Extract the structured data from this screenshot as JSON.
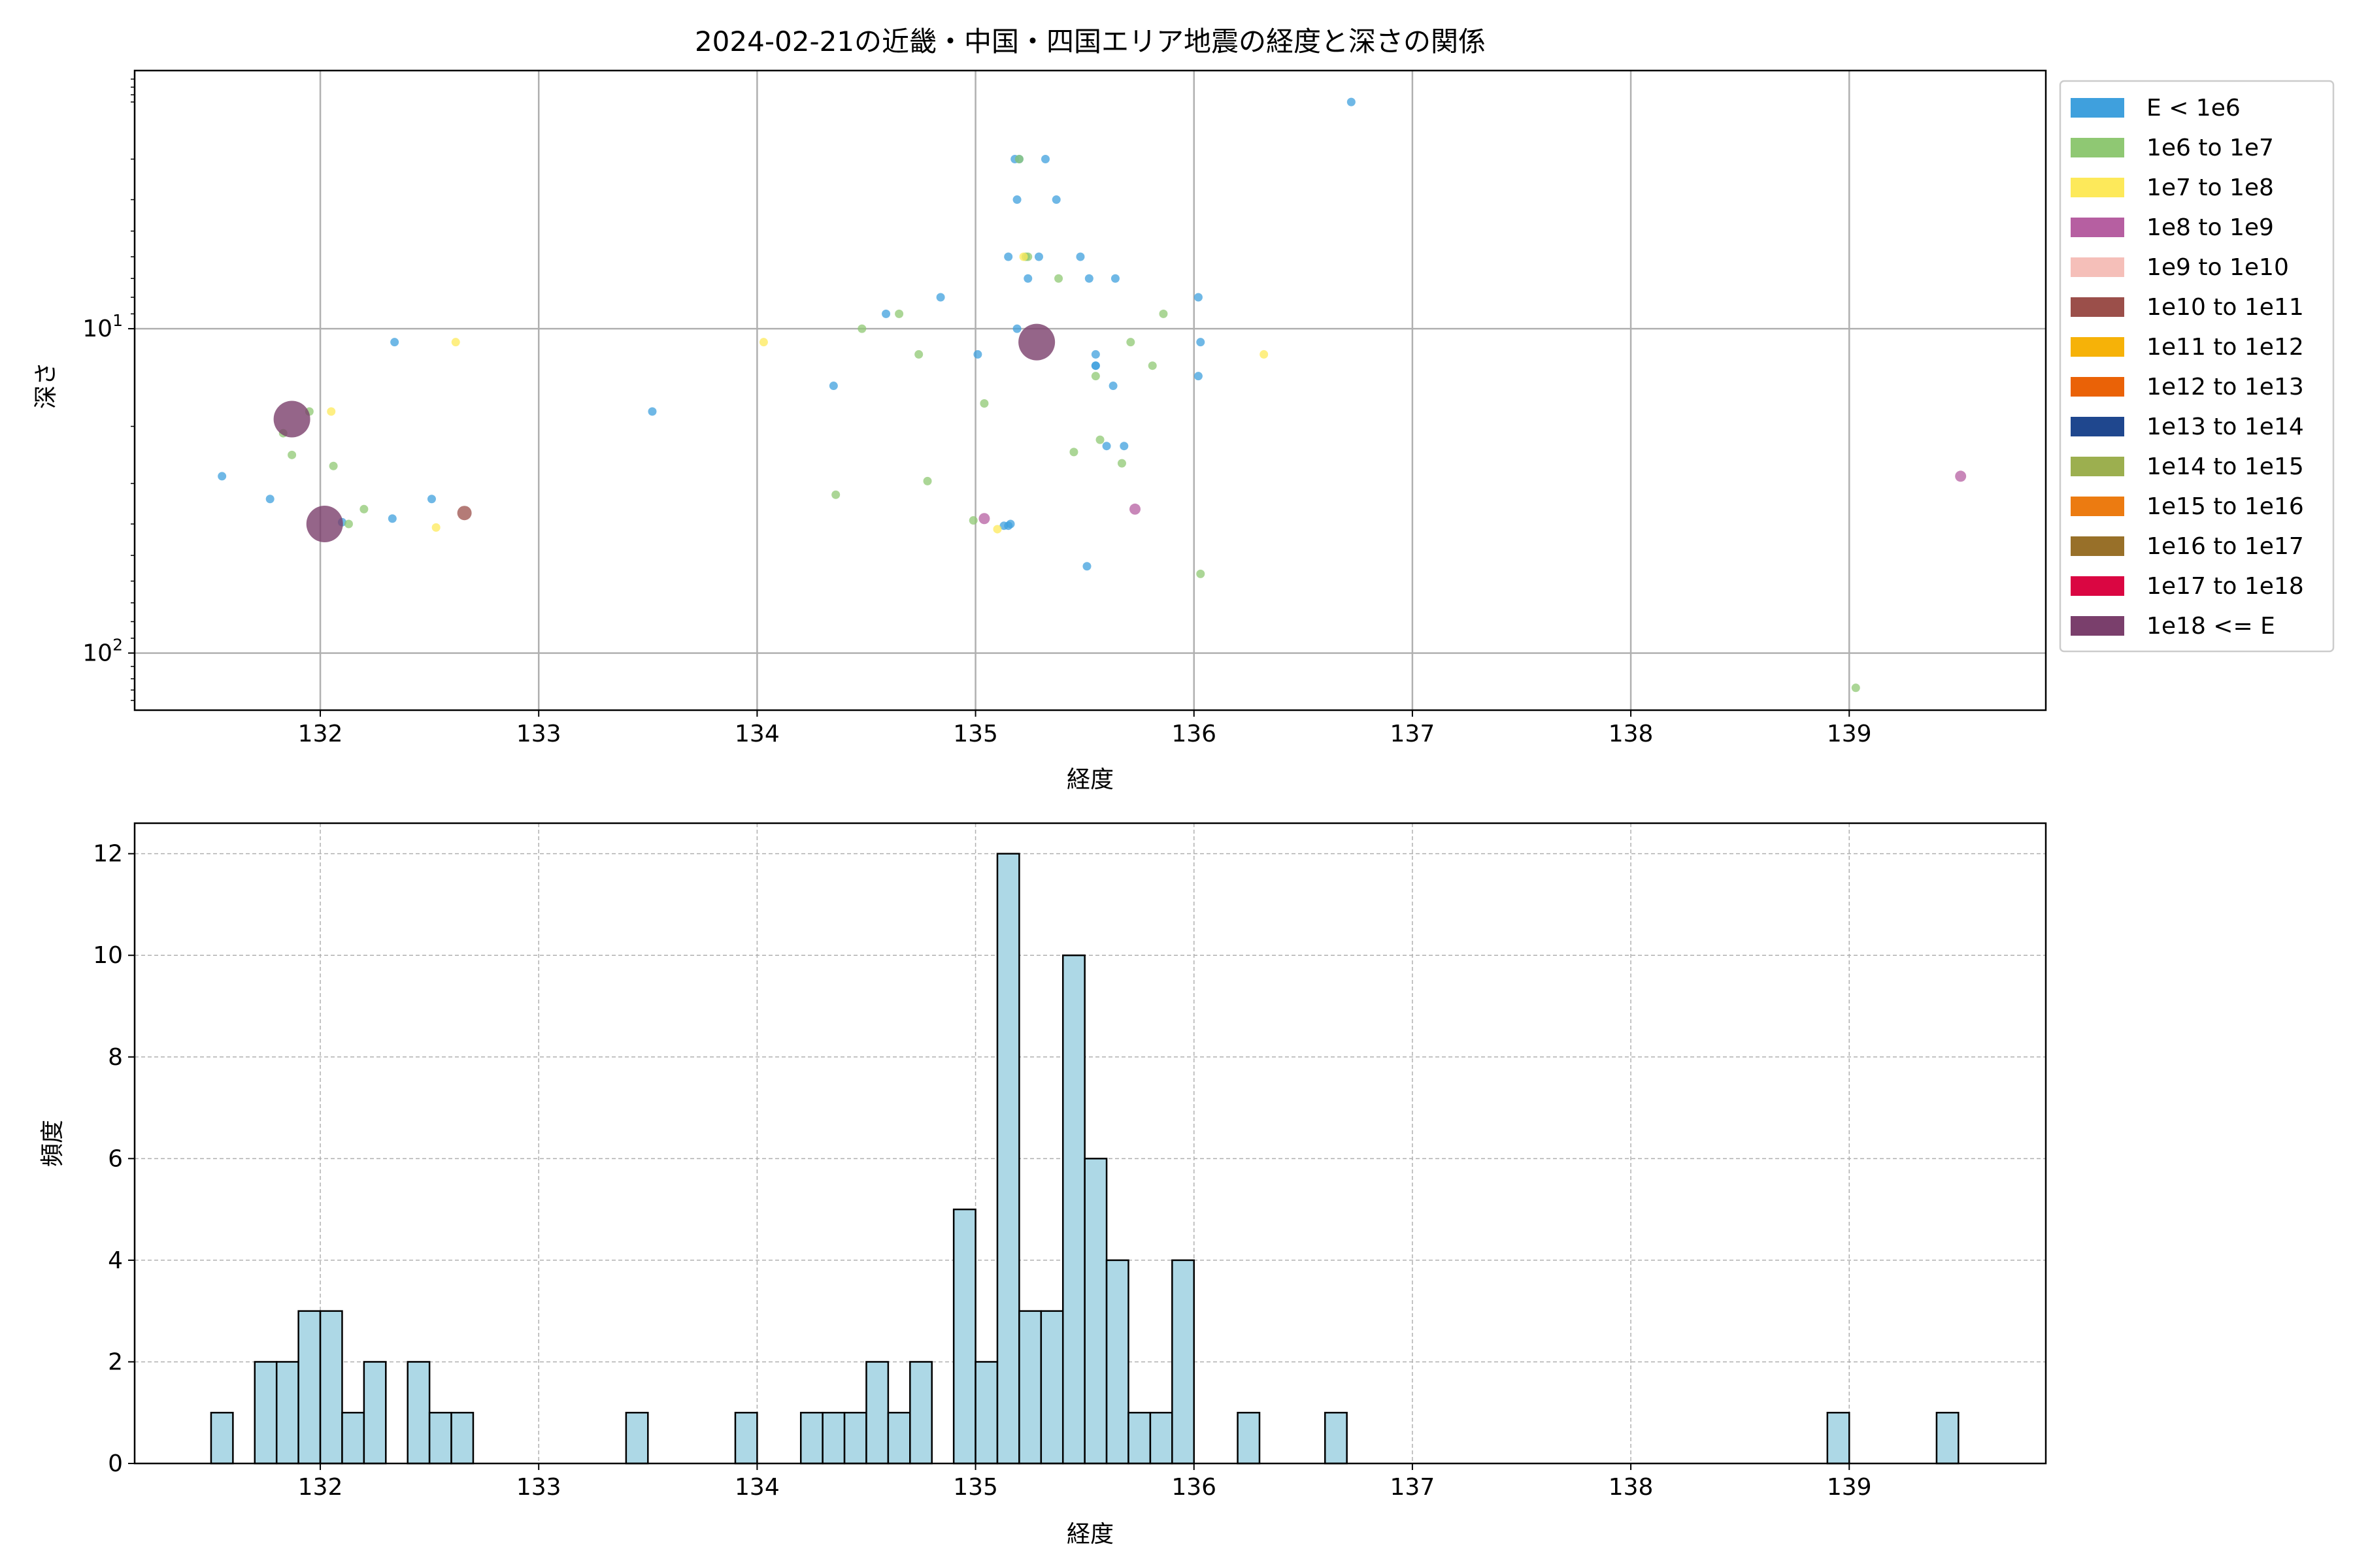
{
  "chart_data": [
    {
      "type": "scatter",
      "title": "2024-02-21の近畿・中国・四国エリア地震の経度と深さの関係",
      "xlabel": "経度",
      "ylabel": "深さ",
      "xlim": [
        131.15,
        139.9
      ],
      "ylim": [
        150,
        1.6
      ],
      "y_scale": "log",
      "y_inverted": true,
      "grid": true,
      "x_ticks": [
        "132",
        "133",
        "134",
        "135",
        "136",
        "137",
        "138",
        "139"
      ],
      "y_ticks": [
        {
          "label": "10",
          "exp": "1",
          "value": 10
        },
        {
          "label": "10",
          "exp": "2",
          "value": 100
        }
      ],
      "legend_position": "outside-right",
      "legend": [
        {
          "label": "E < 1e6",
          "color": "#3fa0dd"
        },
        {
          "label": "1e6 to 1e7",
          "color": "#8fc873"
        },
        {
          "label": "1e7 to 1e8",
          "color": "#fde95a"
        },
        {
          "label": "1e8 to 1e9",
          "color": "#b65fa1"
        },
        {
          "label": "1e9 to 1e10",
          "color": "#f5bfb9"
        },
        {
          "label": "1e10 to 1e11",
          "color": "#9b4f4a"
        },
        {
          "label": "1e11 to 1e12",
          "color": "#f6b208"
        },
        {
          "label": "1e12 to 1e13",
          "color": "#ea6207"
        },
        {
          "label": "1e13 to 1e14",
          "color": "#1f478e"
        },
        {
          "label": "1e14 to 1e15",
          "color": "#9caf4f"
        },
        {
          "label": "1e15 to 1e16",
          "color": "#ec7b11"
        },
        {
          "label": "1e16 to 1e17",
          "color": "#987029"
        },
        {
          "label": "1e17 to 1e18",
          "color": "#da0642"
        },
        {
          "label": "1e18 <= E",
          "color": "#7a3f6c"
        }
      ],
      "series": [
        {
          "name": "E < 1e6",
          "points": [
            [
              131.55,
              28.5
            ],
            [
              131.77,
              33.5
            ],
            [
              132.1,
              39.5
            ],
            [
              132.34,
              11
            ],
            [
              132.33,
              38.5
            ],
            [
              132.51,
              33.5
            ],
            [
              133.52,
              18
            ],
            [
              134.35,
              15
            ],
            [
              134.59,
              9
            ],
            [
              134.84,
              8
            ],
            [
              135.01,
              12
            ],
            [
              135.18,
              3
            ],
            [
              135.2,
              3
            ],
            [
              135.19,
              4
            ],
            [
              135.32,
              3
            ],
            [
              135.37,
              4
            ],
            [
              135.15,
              6
            ],
            [
              135.24,
              7
            ],
            [
              135.29,
              6
            ],
            [
              135.48,
              6
            ],
            [
              135.52,
              7
            ],
            [
              135.64,
              7
            ],
            [
              135.19,
              10
            ],
            [
              135.55,
              12
            ],
            [
              135.55,
              13
            ],
            [
              135.55,
              13
            ],
            [
              135.63,
              15
            ],
            [
              135.6,
              23
            ],
            [
              135.68,
              23
            ],
            [
              135.51,
              54
            ],
            [
              136.02,
              8
            ],
            [
              136.03,
              11
            ],
            [
              136.02,
              14
            ],
            [
              136.72,
              2
            ],
            [
              135.13,
              40.5
            ],
            [
              135.16,
              40
            ],
            [
              135.15,
              40.5
            ]
          ]
        },
        {
          "name": "1e6 to 1e7",
          "points": [
            [
              131.83,
              21
            ],
            [
              131.95,
              18
            ],
            [
              131.87,
              24.5
            ],
            [
              132.06,
              26.5
            ],
            [
              132.2,
              36
            ],
            [
              132.13,
              40
            ],
            [
              134.36,
              32.5
            ],
            [
              134.48,
              10
            ],
            [
              134.65,
              9
            ],
            [
              134.74,
              12
            ],
            [
              134.78,
              29.5
            ],
            [
              134.99,
              39
            ],
            [
              135.04,
              17
            ],
            [
              135.2,
              3
            ],
            [
              135.23,
              6
            ],
            [
              135.24,
              6
            ],
            [
              135.38,
              7
            ],
            [
              135.45,
              24
            ],
            [
              135.71,
              11
            ],
            [
              135.55,
              14
            ],
            [
              135.57,
              22
            ],
            [
              135.67,
              26
            ],
            [
              135.81,
              13
            ],
            [
              135.86,
              9
            ],
            [
              136.03,
              57
            ],
            [
              139.03,
              128
            ]
          ]
        },
        {
          "name": "1e7 to 1e8",
          "points": [
            [
              132.05,
              18
            ],
            [
              132.62,
              11
            ],
            [
              132.53,
              41
            ],
            [
              134.03,
              11
            ],
            [
              135.1,
              41.5
            ],
            [
              135.22,
              6
            ],
            [
              136.32,
              12
            ]
          ]
        },
        {
          "name": "1e8 to 1e9",
          "points": [
            [
              135.04,
              38.5
            ],
            [
              135.73,
              36
            ],
            [
              139.51,
              28.5
            ]
          ]
        },
        {
          "name": "1e10 to 1e11",
          "points": [
            [
              132.66,
              37
            ]
          ]
        },
        {
          "name": "1e18 <= E",
          "points": [
            [
              131.87,
              19
            ],
            [
              132.02,
              40
            ],
            [
              135.28,
              11
            ]
          ]
        }
      ]
    },
    {
      "type": "bar",
      "title": "",
      "xlabel": "経度",
      "ylabel": "頻度",
      "xlim": [
        131.15,
        139.9
      ],
      "ylim": [
        0,
        12.6
      ],
      "bin_width": 0.1,
      "grid": true,
      "x_ticks": [
        "132",
        "133",
        "134",
        "135",
        "136",
        "137",
        "138",
        "139"
      ],
      "y_ticks": [
        "0",
        "2",
        "4",
        "6",
        "8",
        "10",
        "12"
      ],
      "bins": [
        {
          "x": 131.55,
          "count": 1
        },
        {
          "x": 131.75,
          "count": 2
        },
        {
          "x": 131.85,
          "count": 2
        },
        {
          "x": 131.95,
          "count": 3
        },
        {
          "x": 132.05,
          "count": 3
        },
        {
          "x": 132.15,
          "count": 1
        },
        {
          "x": 132.25,
          "count": 2
        },
        {
          "x": 132.45,
          "count": 2
        },
        {
          "x": 132.55,
          "count": 1
        },
        {
          "x": 132.65,
          "count": 1
        },
        {
          "x": 133.45,
          "count": 1
        },
        {
          "x": 133.95,
          "count": 1
        },
        {
          "x": 134.25,
          "count": 1
        },
        {
          "x": 134.35,
          "count": 1
        },
        {
          "x": 134.45,
          "count": 1
        },
        {
          "x": 134.55,
          "count": 2
        },
        {
          "x": 134.65,
          "count": 1
        },
        {
          "x": 134.75,
          "count": 2
        },
        {
          "x": 134.95,
          "count": 5
        },
        {
          "x": 135.05,
          "count": 2
        },
        {
          "x": 135.15,
          "count": 12
        },
        {
          "x": 135.25,
          "count": 3
        },
        {
          "x": 135.35,
          "count": 3
        },
        {
          "x": 135.45,
          "count": 10
        },
        {
          "x": 135.55,
          "count": 6
        },
        {
          "x": 135.65,
          "count": 4
        },
        {
          "x": 135.75,
          "count": 1
        },
        {
          "x": 135.85,
          "count": 1
        },
        {
          "x": 135.95,
          "count": 4
        },
        {
          "x": 136.25,
          "count": 1
        },
        {
          "x": 136.65,
          "count": 1
        },
        {
          "x": 138.95,
          "count": 1
        },
        {
          "x": 139.45,
          "count": 1
        }
      ]
    }
  ]
}
